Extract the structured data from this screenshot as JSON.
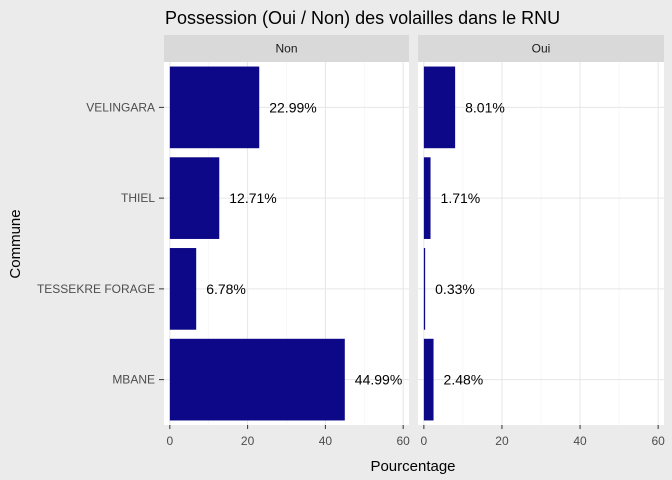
{
  "chart_data": {
    "type": "bar",
    "orientation": "horizontal",
    "title": "Possession (Oui / Non) des volailles dans le RNU",
    "xlabel": "Pourcentage",
    "ylabel": "Commune",
    "categories": [
      "VELINGARA",
      "THIEL",
      "TESSEKRE FORAGE",
      "MBANE"
    ],
    "xlim": [
      -1.5,
      61.5
    ],
    "x_ticks": [
      "0",
      "20",
      "40",
      "60"
    ],
    "grid": true,
    "bar_color": "#0d0887",
    "panels": [
      {
        "name": "Non",
        "values": [
          22.99,
          12.71,
          6.78,
          44.99
        ],
        "labels": [
          "22.99%",
          "12.71%",
          "6.78%",
          "44.99%"
        ]
      },
      {
        "name": "Oui",
        "values": [
          8.01,
          1.71,
          0.33,
          2.48
        ],
        "labels": [
          "8.01%",
          "1.71%",
          "0.33%",
          "2.48%"
        ]
      }
    ]
  }
}
